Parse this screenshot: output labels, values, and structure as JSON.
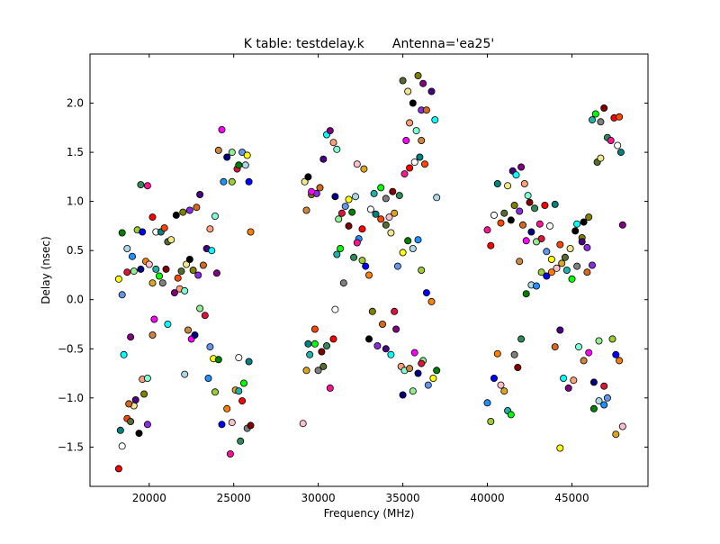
{
  "chart_data": {
    "type": "scatter",
    "title": "K table: testdelay.k       Antenna='ea25'",
    "xlabel": "Frequency (MHz)",
    "ylabel": "Delay (nsec)",
    "xlim": [
      16500,
      49500
    ],
    "ylim": [
      -1.9,
      2.5
    ],
    "xticks": [
      20000,
      25000,
      30000,
      35000,
      40000,
      45000
    ],
    "yticks": [
      -1.5,
      -1.0,
      -0.5,
      0.0,
      0.5,
      1.0,
      1.5,
      2.0
    ],
    "xtick_labels": [
      "20000",
      "25000",
      "30000",
      "35000",
      "40000",
      "45000"
    ],
    "ytick_labels": [
      "−1.5",
      "−1.0",
      "−0.5",
      "0.0",
      "0.5",
      "1.0",
      "1.5",
      "2.0"
    ],
    "grid": false,
    "marker": "circle",
    "marker_edge_color": "#000000",
    "palette": [
      "#ff0000",
      "#00ff00",
      "#0000ff",
      "#ffff00",
      "#ff00ff",
      "#00ffff",
      "#000000",
      "#ffffff",
      "#808080",
      "#ff8000",
      "#008000",
      "#000080",
      "#800080",
      "#808000",
      "#008080",
      "#800000",
      "#ffc0cb",
      "#add8e6",
      "#90ee90",
      "#ffa07a",
      "#8a2be2",
      "#ff4500",
      "#2e8b57",
      "#daa520",
      "#1e90ff",
      "#dc143c",
      "#7fffd4",
      "#d2691e",
      "#556b2f",
      "#ff1493",
      "#20b2aa",
      "#9acd32",
      "#6495ed",
      "#cd853f",
      "#4b0082",
      "#f0e68c"
    ],
    "points": [
      [
        18200,
        -1.72
      ],
      [
        18400,
        -1.49
      ],
      [
        18300,
        -1.33
      ],
      [
        18700,
        -1.21
      ],
      [
        18900,
        -1.24
      ],
      [
        19100,
        -1.08
      ],
      [
        19400,
        -1.36
      ],
      [
        19700,
        -0.96
      ],
      [
        19900,
        -1.27
      ],
      [
        18800,
        -1.06
      ],
      [
        19200,
        -1.02
      ],
      [
        18500,
        -0.56
      ],
      [
        18900,
        -0.38
      ],
      [
        19600,
        -0.81
      ],
      [
        19900,
        -0.8
      ],
      [
        20200,
        -0.36
      ],
      [
        20300,
        -0.2
      ],
      [
        19500,
        0.31
      ],
      [
        19100,
        0.29
      ],
      [
        18700,
        0.28
      ],
      [
        18400,
        0.05
      ],
      [
        18200,
        0.21
      ],
      [
        18400,
        0.68
      ],
      [
        18700,
        0.52
      ],
      [
        19000,
        0.44
      ],
      [
        19300,
        0.71
      ],
      [
        19600,
        0.69
      ],
      [
        19800,
        0.39
      ],
      [
        20000,
        0.36
      ],
      [
        20200,
        0.17
      ],
      [
        20400,
        0.31
      ],
      [
        20600,
        0.24
      ],
      [
        20800,
        0.17
      ],
      [
        21000,
        0.31
      ],
      [
        19500,
        1.17
      ],
      [
        19900,
        1.16
      ],
      [
        20200,
        0.84
      ],
      [
        20400,
        0.69
      ],
      [
        20700,
        0.69
      ],
      [
        20900,
        0.73
      ],
      [
        21100,
        0.59
      ],
      [
        21300,
        0.61
      ],
      [
        21600,
        0.86
      ],
      [
        22000,
        0.89
      ],
      [
        22400,
        0.91
      ],
      [
        22800,
        0.94
      ],
      [
        23000,
        1.07
      ],
      [
        21100,
        -0.25
      ],
      [
        21500,
        0.07
      ],
      [
        21800,
        0.11
      ],
      [
        22100,
        0.09
      ],
      [
        22300,
        -0.31
      ],
      [
        22500,
        -0.4
      ],
      [
        22700,
        -0.36
      ],
      [
        23000,
        -0.09
      ],
      [
        23300,
        -0.16
      ],
      [
        23600,
        -0.48
      ],
      [
        23800,
        -0.6
      ],
      [
        24100,
        -0.61
      ],
      [
        22100,
        -0.76
      ],
      [
        23500,
        -0.8
      ],
      [
        23900,
        -0.94
      ],
      [
        24300,
        -1.27
      ],
      [
        24600,
        -1.11
      ],
      [
        24900,
        -1.25
      ],
      [
        25100,
        -0.92
      ],
      [
        25300,
        -0.93
      ],
      [
        25600,
        -0.85
      ],
      [
        25800,
        -1.31
      ],
      [
        26000,
        -1.28
      ],
      [
        25400,
        -1.44
      ],
      [
        24800,
        -1.57
      ],
      [
        25500,
        -1.03
      ],
      [
        25300,
        -0.59
      ],
      [
        25900,
        -0.63
      ],
      [
        21700,
        0.22
      ],
      [
        21900,
        0.29
      ],
      [
        22200,
        0.36
      ],
      [
        22400,
        0.41
      ],
      [
        22600,
        0.3
      ],
      [
        22900,
        0.25
      ],
      [
        23200,
        0.35
      ],
      [
        23400,
        0.52
      ],
      [
        23700,
        0.5
      ],
      [
        24000,
        0.27
      ],
      [
        23600,
        0.72
      ],
      [
        23900,
        0.85
      ],
      [
        24100,
        1.52
      ],
      [
        24300,
        1.73
      ],
      [
        24600,
        1.45
      ],
      [
        24900,
        1.5
      ],
      [
        25200,
        1.33
      ],
      [
        25500,
        1.5
      ],
      [
        25800,
        1.47
      ],
      [
        25300,
        1.37
      ],
      [
        25700,
        1.37
      ],
      [
        24400,
        1.2
      ],
      [
        24900,
        1.2
      ],
      [
        25900,
        1.2
      ],
      [
        26000,
        0.69
      ],
      [
        29100,
        -1.26
      ],
      [
        29300,
        -0.72
      ],
      [
        29500,
        -0.56
      ],
      [
        29800,
        -0.45
      ],
      [
        30000,
        -0.72
      ],
      [
        30200,
        -0.53
      ],
      [
        30500,
        -0.47
      ],
      [
        30700,
        -0.9
      ],
      [
        30900,
        -0.4
      ],
      [
        31000,
        -0.1
      ],
      [
        29400,
        -0.45
      ],
      [
        29800,
        -0.3
      ],
      [
        30300,
        -0.68
      ],
      [
        29200,
        1.2
      ],
      [
        29400,
        1.25
      ],
      [
        29600,
        1.07
      ],
      [
        29900,
        1.08
      ],
      [
        30100,
        1.14
      ],
      [
        30300,
        1.43
      ],
      [
        30500,
        1.68
      ],
      [
        30700,
        1.72
      ],
      [
        30900,
        1.6
      ],
      [
        31100,
        1.53
      ],
      [
        29300,
        0.91
      ],
      [
        29600,
        1.1
      ],
      [
        31000,
        1.05
      ],
      [
        31200,
        0.82
      ],
      [
        31400,
        0.88
      ],
      [
        31600,
        0.95
      ],
      [
        31800,
        1.02
      ],
      [
        32000,
        0.89
      ],
      [
        32200,
        1.05
      ],
      [
        32400,
        0.62
      ],
      [
        32600,
        0.4
      ],
      [
        32800,
        0.34
      ],
      [
        33000,
        0.25
      ],
      [
        32300,
        1.38
      ],
      [
        32700,
        1.33
      ],
      [
        31100,
        0.46
      ],
      [
        31300,
        0.52
      ],
      [
        31500,
        0.17
      ],
      [
        31800,
        0.75
      ],
      [
        32100,
        0.43
      ],
      [
        32300,
        0.58
      ],
      [
        32600,
        0.72
      ],
      [
        33100,
        0.92
      ],
      [
        33400,
        0.87
      ],
      [
        33700,
        0.82
      ],
      [
        34000,
        0.76
      ],
      [
        34300,
        0.68
      ],
      [
        33000,
        -0.4
      ],
      [
        33200,
        -0.12
      ],
      [
        33500,
        -0.47
      ],
      [
        33800,
        -0.25
      ],
      [
        34000,
        -0.5
      ],
      [
        34300,
        -0.56
      ],
      [
        34600,
        -0.3
      ],
      [
        34900,
        -0.68
      ],
      [
        35100,
        -0.72
      ],
      [
        35400,
        -0.7
      ],
      [
        35700,
        -0.54
      ],
      [
        35900,
        -0.75
      ],
      [
        36200,
        -0.62
      ],
      [
        34500,
        -0.12
      ],
      [
        34700,
        0.34
      ],
      [
        35000,
        0.48
      ],
      [
        35300,
        0.6
      ],
      [
        35600,
        0.52
      ],
      [
        35900,
        0.61
      ],
      [
        36100,
        0.3
      ],
      [
        36400,
        0.07
      ],
      [
        36700,
        -0.02
      ],
      [
        34200,
        0.84
      ],
      [
        34500,
        0.88
      ],
      [
        33300,
        1.08
      ],
      [
        33700,
        1.14
      ],
      [
        34000,
        1.03
      ],
      [
        34400,
        1.1
      ],
      [
        34800,
        1.06
      ],
      [
        35100,
        1.28
      ],
      [
        35400,
        1.34
      ],
      [
        35700,
        1.4
      ],
      [
        36000,
        1.45
      ],
      [
        36300,
        1.38
      ],
      [
        35000,
        2.23
      ],
      [
        35300,
        2.12
      ],
      [
        35600,
        2.0
      ],
      [
        35900,
        2.28
      ],
      [
        36100,
        1.93
      ],
      [
        36400,
        1.93
      ],
      [
        36700,
        2.12
      ],
      [
        36900,
        1.83
      ],
      [
        36200,
        2.2
      ],
      [
        35400,
        1.8
      ],
      [
        35800,
        1.72
      ],
      [
        36100,
        1.62
      ],
      [
        35200,
        1.62
      ],
      [
        35000,
        -0.97
      ],
      [
        35600,
        -0.93
      ],
      [
        36100,
        -0.65
      ],
      [
        36500,
        -0.87
      ],
      [
        36800,
        -0.8
      ],
      [
        37000,
        -0.72
      ],
      [
        37000,
        1.04
      ],
      [
        40000,
        -1.05
      ],
      [
        40200,
        -1.24
      ],
      [
        40400,
        -0.8
      ],
      [
        40600,
        -0.55
      ],
      [
        40800,
        -0.87
      ],
      [
        41000,
        -0.93
      ],
      [
        41200,
        -1.13
      ],
      [
        41400,
        -1.17
      ],
      [
        41600,
        -0.56
      ],
      [
        41800,
        -0.69
      ],
      [
        42000,
        -0.4
      ],
      [
        40000,
        0.71
      ],
      [
        40200,
        0.55
      ],
      [
        40400,
        0.86
      ],
      [
        40600,
        1.18
      ],
      [
        40800,
        0.78
      ],
      [
        41000,
        0.88
      ],
      [
        41200,
        1.16
      ],
      [
        41400,
        0.81
      ],
      [
        41600,
        0.96
      ],
      [
        41900,
        0.9
      ],
      [
        42100,
        0.76
      ],
      [
        41500,
        1.31
      ],
      [
        41700,
        1.27
      ],
      [
        42000,
        1.35
      ],
      [
        42200,
        1.18
      ],
      [
        42400,
        1.06
      ],
      [
        41900,
        0.39
      ],
      [
        42300,
        0.6
      ],
      [
        42600,
        0.69
      ],
      [
        42900,
        0.59
      ],
      [
        43200,
        0.62
      ],
      [
        43500,
        0.49
      ],
      [
        43800,
        0.41
      ],
      [
        42300,
        0.06
      ],
      [
        42600,
        0.15
      ],
      [
        42900,
        0.14
      ],
      [
        43200,
        0.28
      ],
      [
        43500,
        0.24
      ],
      [
        43800,
        0.28
      ],
      [
        44100,
        0.32
      ],
      [
        44400,
        0.37
      ],
      [
        44700,
        0.3
      ],
      [
        45000,
        0.21
      ],
      [
        45300,
        0.34
      ],
      [
        42500,
        0.99
      ],
      [
        42800,
        0.93
      ],
      [
        43100,
        0.77
      ],
      [
        43400,
        0.96
      ],
      [
        43700,
        0.75
      ],
      [
        44000,
        0.97
      ],
      [
        44300,
        0.56
      ],
      [
        44600,
        0.43
      ],
      [
        44900,
        0.52
      ],
      [
        45200,
        0.7
      ],
      [
        45600,
        0.63
      ],
      [
        45900,
        0.53
      ],
      [
        44000,
        -0.48
      ],
      [
        44300,
        -0.31
      ],
      [
        44500,
        -0.8
      ],
      [
        44800,
        -0.9
      ],
      [
        45100,
        -0.82
      ],
      [
        45400,
        -0.48
      ],
      [
        45700,
        -0.62
      ],
      [
        46000,
        -0.54
      ],
      [
        46300,
        -0.84
      ],
      [
        46600,
        -0.42
      ],
      [
        46900,
        -0.88
      ],
      [
        47100,
        -1.0
      ],
      [
        44300,
        -1.51
      ],
      [
        46300,
        -1.11
      ],
      [
        46600,
        -1.03
      ],
      [
        46900,
        -1.07
      ],
      [
        47400,
        -0.4
      ],
      [
        47600,
        -0.56
      ],
      [
        47800,
        -0.62
      ],
      [
        48000,
        -1.29
      ],
      [
        47600,
        -1.37
      ],
      [
        46200,
        1.83
      ],
      [
        46400,
        1.89
      ],
      [
        46700,
        1.81
      ],
      [
        46900,
        1.95
      ],
      [
        47100,
        1.65
      ],
      [
        47300,
        1.62
      ],
      [
        47500,
        1.85
      ],
      [
        47700,
        1.57
      ],
      [
        47900,
        1.5
      ],
      [
        47800,
        1.86
      ],
      [
        46500,
        1.4
      ],
      [
        46700,
        1.44
      ],
      [
        45700,
        0.79
      ],
      [
        46000,
        0.84
      ],
      [
        46200,
        0.35
      ],
      [
        45900,
        0.28
      ],
      [
        45600,
        0.59
      ],
      [
        45300,
        0.77
      ],
      [
        48000,
        0.76
      ]
    ]
  }
}
